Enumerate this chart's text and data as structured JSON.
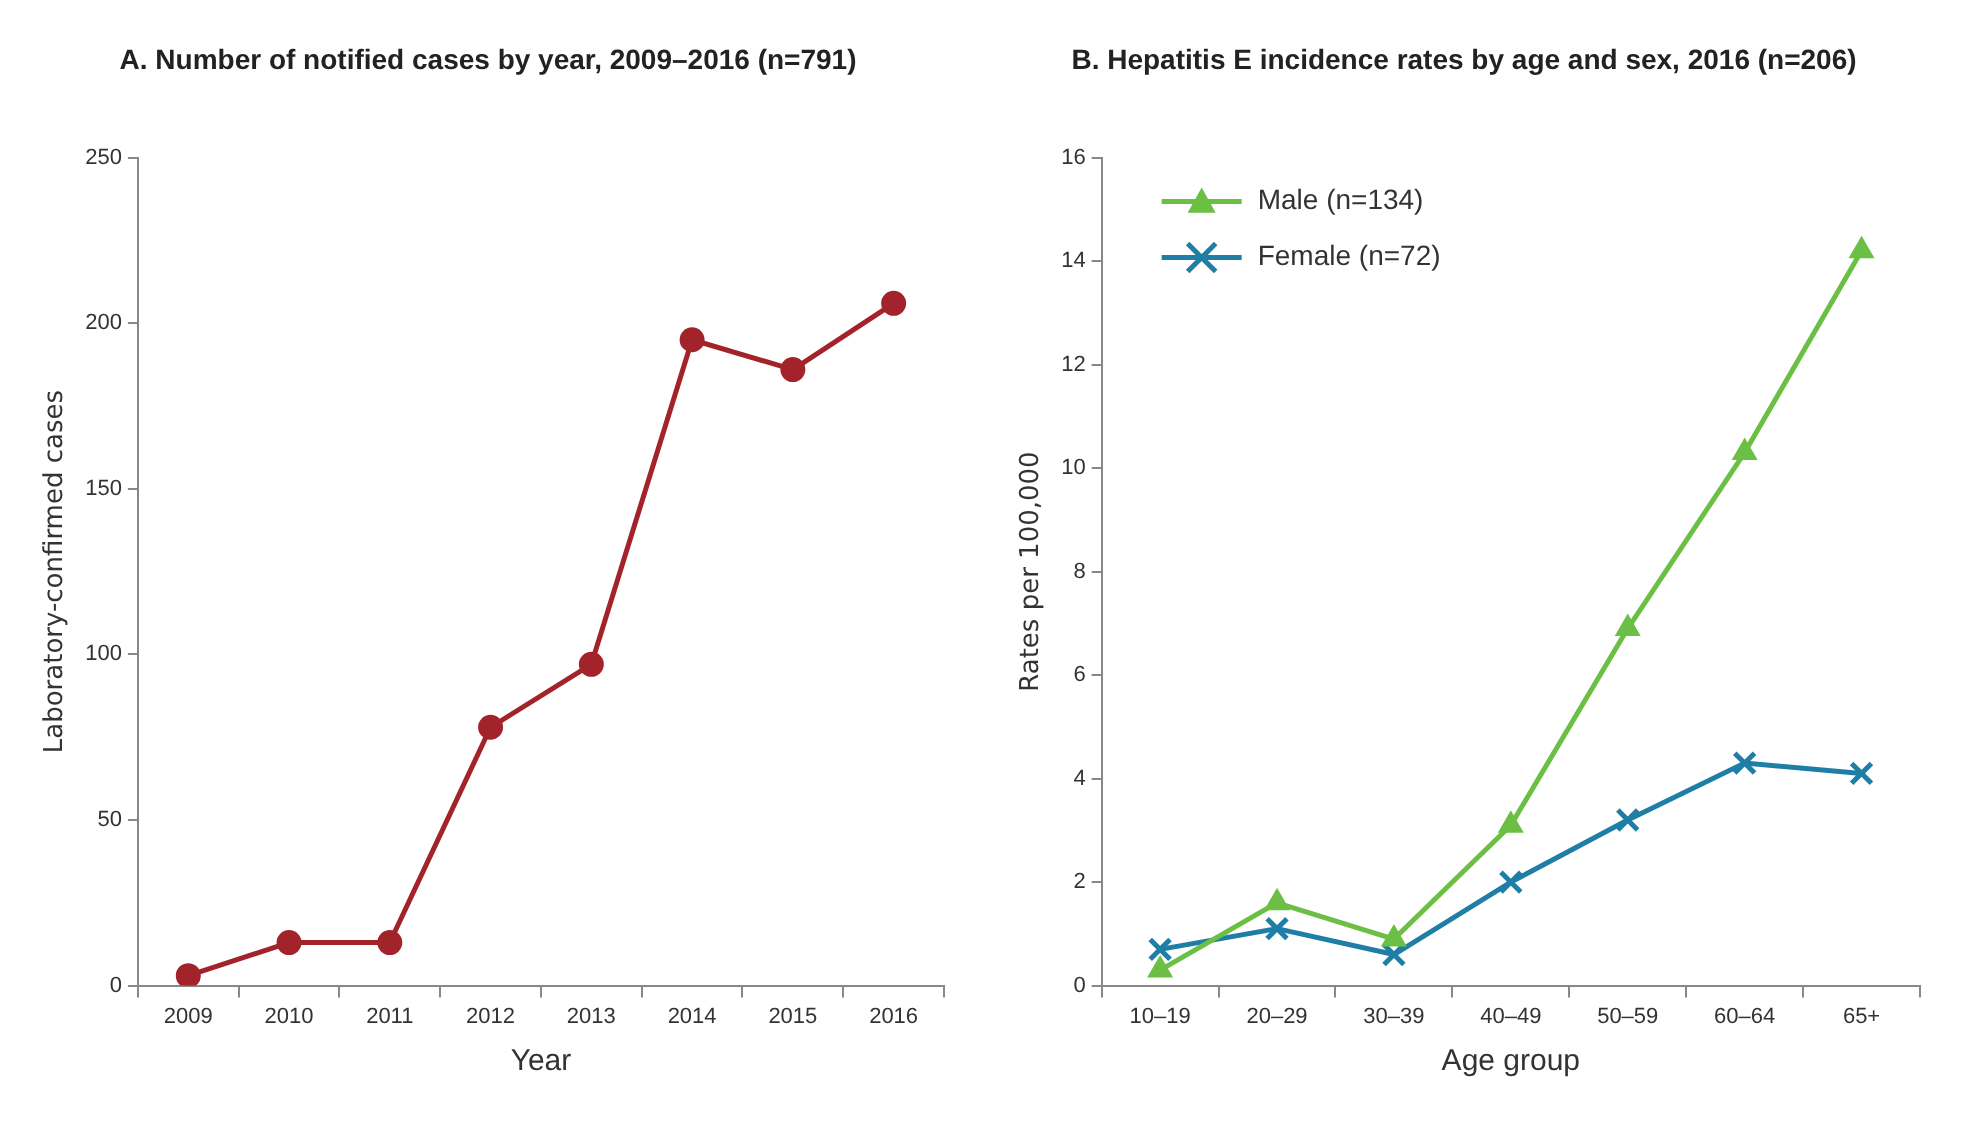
{
  "chart_data": [
    {
      "type": "line",
      "title": "A. Number of notified cases by year, 2009–2016 (n=791)",
      "xlabel": "Year",
      "ylabel": "Laboratory-confirmed cases",
      "categories": [
        "2009",
        "2010",
        "2011",
        "2012",
        "2013",
        "2014",
        "2015",
        "2016"
      ],
      "series": [
        {
          "color": "#a3232b",
          "values": [
            3,
            13,
            13,
            78,
            97,
            195,
            186,
            206
          ]
        }
      ],
      "ylim": [
        0,
        250
      ],
      "yticks": [
        0,
        50,
        100,
        150,
        200,
        250
      ],
      "grid": false,
      "legend": false,
      "marker": "circle",
      "line_style": "solid"
    },
    {
      "type": "line",
      "title": "B. Hepatitis E incidence rates by age and sex, 2016 (n=206)",
      "xlabel": "Age group",
      "ylabel": "Rates per 100,000",
      "categories": [
        "10–19",
        "20–29",
        "30–39",
        "40–49",
        "50–59",
        "60–64",
        "65+"
      ],
      "series": [
        {
          "name": "Male (n=134)",
          "color": "#6cbf45",
          "marker": "triangle",
          "values": [
            0.3,
            1.6,
            0.9,
            3.1,
            6.9,
            10.3,
            14.2
          ]
        },
        {
          "name": "Female (n=72)",
          "color": "#1f7ea6",
          "marker": "cross",
          "values": [
            0.7,
            1.1,
            0.6,
            2.0,
            3.2,
            4.3,
            4.1
          ]
        }
      ],
      "ylim": [
        0,
        16
      ],
      "yticks": [
        0,
        2,
        4,
        6,
        8,
        10,
        12,
        14,
        16
      ],
      "grid": false,
      "legend": "top left",
      "line_style": "solid"
    }
  ]
}
